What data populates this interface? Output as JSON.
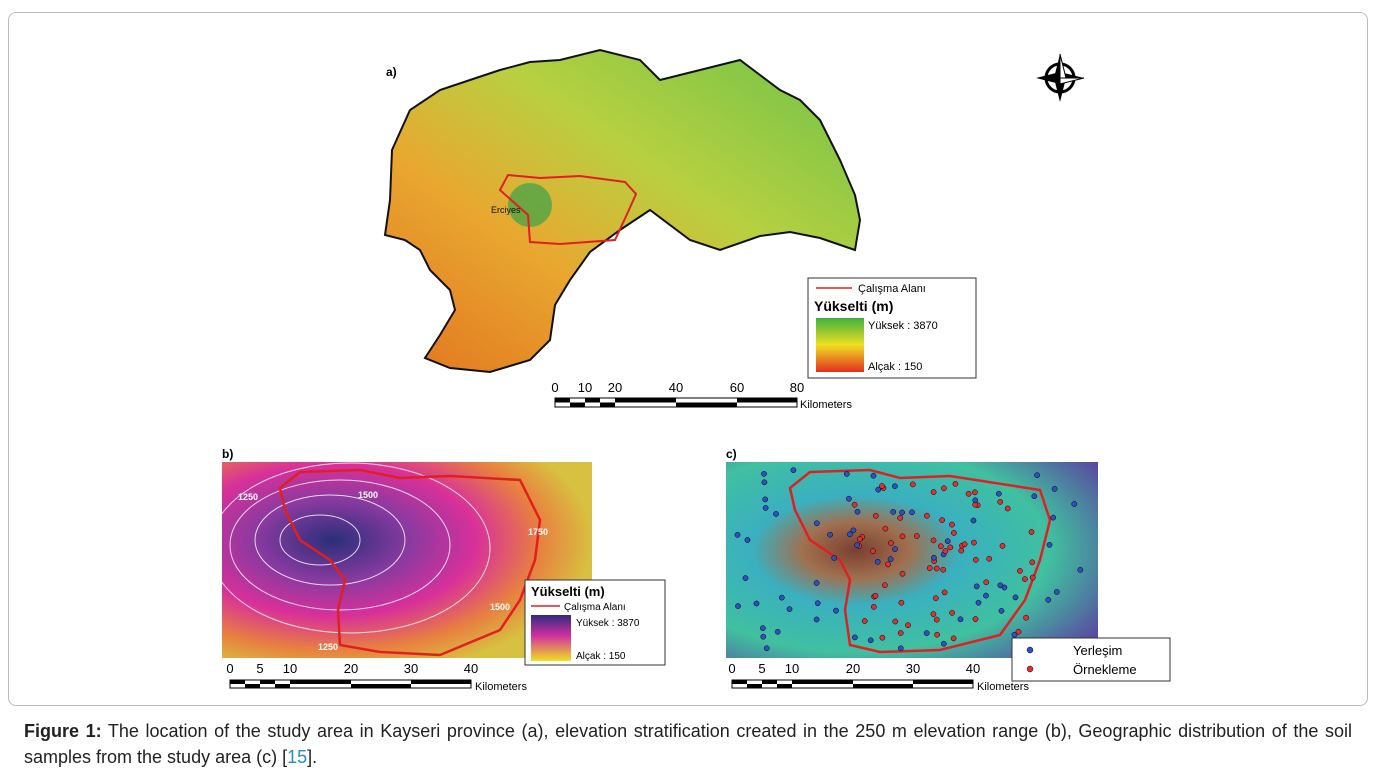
{
  "panel_a": {
    "label": "a)",
    "place": "Erciyes",
    "legend": {
      "line": "Çalışma Alanı",
      "title": "Yükselti (m)",
      "high": "Yüksek : 3870",
      "low": "Alçak : 150"
    },
    "scale": {
      "ticks": [
        "0",
        "10",
        "20",
        "40",
        "60",
        "80"
      ],
      "unit": "Kilometers"
    }
  },
  "panel_b": {
    "label": "b)",
    "contours": [
      "1250",
      "1500",
      "1750",
      "1250",
      "1500"
    ],
    "legend": {
      "title": "Yükselti (m)",
      "line": "Çalışma Alanı",
      "high": "Yüksek : 3870",
      "low": "Alçak : 150"
    },
    "scale": {
      "ticks": [
        "0",
        "5",
        "10",
        "20",
        "30",
        "40"
      ],
      "unit": "Kilometers"
    }
  },
  "panel_c": {
    "label": "c)",
    "legend": [
      "Yerleşim",
      "Örnekleme"
    ],
    "scale": {
      "ticks": [
        "0",
        "5",
        "10",
        "20",
        "30",
        "40"
      ],
      "unit": "Kilometers"
    }
  },
  "caption": {
    "label": "Figure 1:",
    "text": " The location of the study area in Kayseri province (a), elevation stratification created in the 250 m elevation range (b), Geographic distribution of the soil samples from the study area (c) [",
    "ref": "15",
    "end": "]."
  }
}
